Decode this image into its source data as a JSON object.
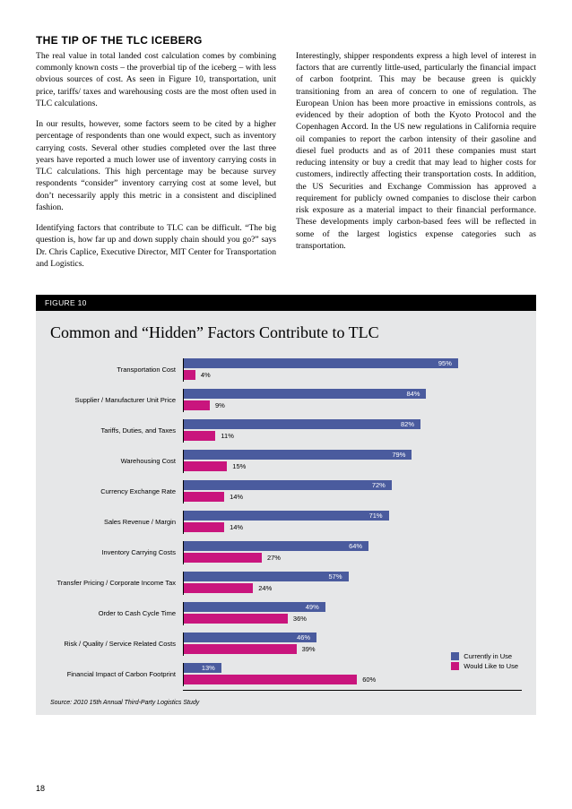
{
  "heading": "THE TIP OF THE TLC ICEBERG",
  "left": {
    "p1": "The real value in total landed cost calculation comes by combining commonly known costs – the proverbial tip of the iceberg – with less obvious sources of cost. As seen in Figure 10, transportation, unit price, tariffs/ taxes and warehousing costs are the most often used in TLC calculations.",
    "p2": "In our results, however, some factors seem to be cited by a higher percentage of respondents than one would expect, such as inventory carrying costs. Several other studies completed over the last three years have reported a much lower use of inventory carrying costs in TLC calculations. This high percentage may be because survey respondents “consider” inventory carrying cost at some level, but don’t necessarily apply this metric in a consistent and disciplined fashion.",
    "p3": "Identifying factors that contribute to TLC can be difficult. “The big question is, how far up and down supply chain should you go?” says Dr. Chris Caplice, Executive Director, MIT Center for Transportation and Logistics."
  },
  "right": {
    "p1": "Interestingly, shipper respondents express a high level of interest in factors that are currently little-used, particularly the financial impact of carbon footprint. This may be because green is quickly transitioning from an area of concern to one of regulation. The European Union has been more proactive in emissions controls, as evidenced by their adoption of both the Kyoto Protocol and the Copenhagen Accord. In the US new regulations in California require oil companies to report the carbon intensity of their gasoline and diesel fuel products and as of 2011 these companies must start reducing intensity or buy a credit that may lead to higher costs for customers, indirectly affecting their transportation costs. In addition, the US Securities and Exchange Commission has approved a requirement for publicly owned companies to disclose their carbon risk exposure as a material impact to their financial performance. These developments imply carbon-based fees will be reflected in some of the largest logistics expense categories such as transportation."
  },
  "figure": {
    "label": "FIGURE 10",
    "title": "Common and “Hidden” Factors Contribute to TLC",
    "source": "Source: 2010 15th Annual Third-Party Logistics Study",
    "max": 100,
    "colors": {
      "blue": "#4a5b9e",
      "pink": "#c9157d",
      "bg": "#e6e7e8"
    },
    "legend": {
      "a": "Currently in Use",
      "b": "Would Like to Use"
    },
    "rows": [
      {
        "label": "Transportation Cost",
        "blue": 95,
        "pink": 4
      },
      {
        "label": "Supplier / Manufacturer Unit Price",
        "blue": 84,
        "pink": 9
      },
      {
        "label": "Tariffs, Duties, and Taxes",
        "blue": 82,
        "pink": 11
      },
      {
        "label": "Warehousing Cost",
        "blue": 79,
        "pink": 15
      },
      {
        "label": "Currency Exchange Rate",
        "blue": 72,
        "pink": 14
      },
      {
        "label": "Sales Revenue / Margin",
        "blue": 71,
        "pink": 14
      },
      {
        "label": "Inventory Carrying Costs",
        "blue": 64,
        "pink": 27
      },
      {
        "label": "Transfer Pricing / Corporate Income Tax",
        "blue": 57,
        "pink": 24
      },
      {
        "label": "Order to Cash Cycle Time",
        "blue": 49,
        "pink": 36
      },
      {
        "label": "Risk / Quality / Service Related Costs",
        "blue": 46,
        "pink": 39
      },
      {
        "label": "Financial Impact of Carbon Footprint",
        "blue": 13,
        "pink": 60
      }
    ]
  },
  "pageNumber": "18"
}
